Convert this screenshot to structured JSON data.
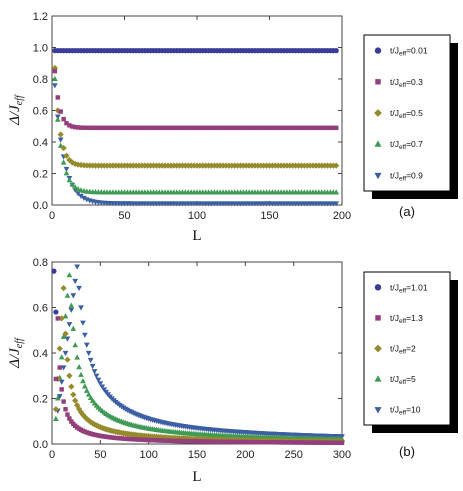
{
  "chart_data": [
    {
      "type": "scatter",
      "panel_label": "(a)",
      "xlabel": "L",
      "ylabel_main": "Δ/J",
      "ylabel_sub": "eff",
      "xlim": [
        0,
        200
      ],
      "ylim": [
        0,
        1.2
      ],
      "xticks": [
        "0",
        "50",
        "100",
        "150",
        "200"
      ],
      "yticks": [
        "0.0",
        "0.2",
        "0.4",
        "0.6",
        "0.8",
        "1.0",
        "1.2"
      ],
      "legend_position": "right",
      "series": [
        {
          "name": "t/J_eff=0.01",
          "legend_prefix": "t/J",
          "legend_sub": "eff",
          "legend_suffix": "=0.01",
          "color": "#3a3c99",
          "marker": "circle",
          "x_range": [
            2,
            196
          ],
          "step": 2,
          "model": {
            "kind": "decay",
            "asym": 0.98,
            "amp": 0.0,
            "tau": 1
          }
        },
        {
          "name": "t/J_eff=0.3",
          "legend_prefix": "t/J",
          "legend_sub": "eff",
          "legend_suffix": "=0.3",
          "color": "#943f7b",
          "marker": "square",
          "x_range": [
            2,
            196
          ],
          "step": 2,
          "model": {
            "kind": "decay",
            "asym": 0.49,
            "amp": 0.36,
            "tau": 3.2
          }
        },
        {
          "name": "t/J_eff=0.5",
          "legend_prefix": "t/J",
          "legend_sub": "eff",
          "legend_suffix": "=0.5",
          "color": "#958a2c",
          "marker": "diamond",
          "x_range": [
            2,
            196
          ],
          "step": 2,
          "model": {
            "kind": "decay",
            "asym": 0.25,
            "amp": 0.62,
            "tau": 3.5
          }
        },
        {
          "name": "t/J_eff=0.7",
          "legend_prefix": "t/J",
          "legend_sub": "eff",
          "legend_suffix": "=0.7",
          "color": "#3f9a55",
          "marker": "triangle-up",
          "x_range": [
            2,
            196
          ],
          "step": 2,
          "model": {
            "kind": "decay",
            "asym": 0.08,
            "amp": 0.72,
            "tau": 4.5
          }
        },
        {
          "name": "t/J_eff=0.9",
          "legend_prefix": "t/J",
          "legend_sub": "eff",
          "legend_suffix": "=0.9",
          "color": "#3c5fa3",
          "marker": "triangle-down",
          "x_range": [
            2,
            196
          ],
          "step": 2,
          "model": {
            "kind": "decay",
            "asym": 0.01,
            "amp": 0.75,
            "tau": 6.5
          }
        }
      ]
    },
    {
      "type": "scatter",
      "panel_label": "(b)",
      "xlabel": "L",
      "ylabel_main": "Δ/J",
      "ylabel_sub": "eff",
      "xlim": [
        0,
        300
      ],
      "ylim": [
        0,
        0.8
      ],
      "xticks": [
        "0",
        "50",
        "100",
        "150",
        "200",
        "250",
        "300"
      ],
      "yticks": [
        "0.0",
        "0.2",
        "0.4",
        "0.6",
        "0.8"
      ],
      "legend_position": "right",
      "series": [
        {
          "name": "t/J_eff=1.01",
          "legend_prefix": "t/J",
          "legend_sub": "eff",
          "legend_suffix": "=1.01",
          "color": "#3a3c99",
          "marker": "circle",
          "x_range": [
            2,
            4
          ],
          "step": 2,
          "model": {
            "kind": "points",
            "x": [
              2,
              4
            ],
            "y": [
              0.76,
              0.58
            ]
          }
        },
        {
          "name": "t/J_eff=1.3",
          "legend_prefix": "t/J",
          "legend_sub": "eff",
          "legend_suffix": "=1.3",
          "color": "#943f7b",
          "marker": "square",
          "x_range": [
            4,
            300
          ],
          "step": 2,
          "model": {
            "kind": "peak",
            "peak_x": 6,
            "peak_y": 0.56,
            "c": 3.0
          }
        },
        {
          "name": "t/J_eff=2",
          "legend_prefix": "t/J",
          "legend_sub": "eff",
          "legend_suffix": "=2",
          "color": "#958a2c",
          "marker": "diamond",
          "x_range": [
            4,
            300
          ],
          "step": 2,
          "model": {
            "kind": "peak",
            "peak_x": 12,
            "peak_y": 0.7,
            "c": 4.5
          }
        },
        {
          "name": "t/J_eff=5",
          "legend_prefix": "t/J",
          "legend_sub": "eff",
          "legend_suffix": "=5",
          "color": "#3f9a55",
          "marker": "triangle-up",
          "x_range": [
            4,
            300
          ],
          "step": 2,
          "model": {
            "kind": "peak",
            "peak_x": 18,
            "peak_y": 0.76,
            "c": 8.0
          }
        },
        {
          "name": "t/J_eff=10",
          "legend_prefix": "t/J",
          "legend_sub": "eff",
          "legend_suffix": "=10",
          "color": "#3c5fa3",
          "marker": "triangle-down",
          "x_range": [
            6,
            300
          ],
          "step": 2,
          "model": {
            "kind": "peak",
            "peak_x": 26,
            "peak_y": 0.8,
            "c": 12.0
          }
        }
      ]
    }
  ]
}
